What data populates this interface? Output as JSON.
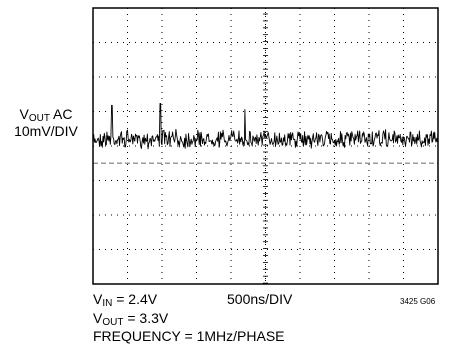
{
  "chart_data": {
    "type": "line",
    "ylabel": {
      "main": "V",
      "sub": "OUT",
      "rest": " AC",
      "scale": "10mV/DIV"
    },
    "xlabel": "500ns/DIV",
    "grid": {
      "cols": 10,
      "rows": 8
    },
    "trace": {
      "description_values_div": "ripple around 0 div from center",
      "baseline_div": 1.0,
      "noise_amplitude_div": 0.18,
      "spikes": [
        {
          "t_div": 0.55,
          "y_div": 1.55
        },
        {
          "t_div": 1.95,
          "y_div": 1.65
        },
        {
          "t_div": 4.4,
          "y_div": 1.3
        }
      ]
    },
    "annotations": {
      "vin": {
        "main": "V",
        "sub": "IN",
        "rest": " = 2.4V"
      },
      "vout": {
        "main": "V",
        "sub": "OUT",
        "rest": " = 3.3V"
      },
      "frequency": "FREQUENCY = 1MHz/PHASE",
      "code": "3425 G06"
    }
  },
  "colors": {
    "trace": "#000000",
    "grid": "#000000",
    "dashed": "#9a9a9a"
  }
}
